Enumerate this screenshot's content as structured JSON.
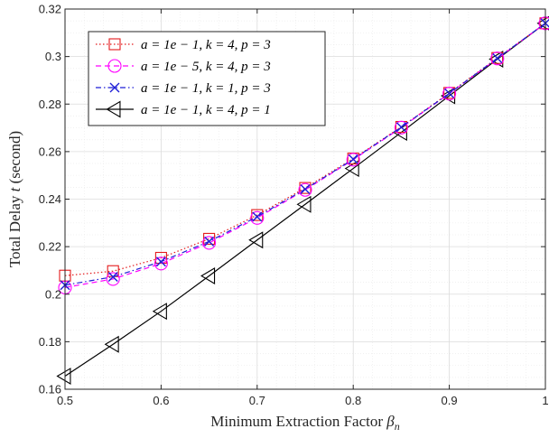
{
  "chart_data": {
    "type": "line",
    "xlabel": "Minimum Extraction Factor β_n",
    "ylabel": "Total Delay t (second)",
    "xlim": [
      0.5,
      1.0
    ],
    "ylim": [
      0.16,
      0.32
    ],
    "x_ticks": [
      "0.5",
      "0.6",
      "0.7",
      "0.8",
      "0.9",
      "1"
    ],
    "y_ticks": [
      "0.16",
      "0.18",
      "0.2",
      "0.22",
      "0.24",
      "0.26",
      "0.28",
      "0.3",
      "0.32"
    ],
    "grid": true,
    "minor_grid": true,
    "legend_position": "top-left",
    "x": [
      0.5,
      0.55,
      0.6,
      0.65,
      0.7,
      0.75,
      0.8,
      0.85,
      0.9,
      0.95,
      1.0
    ],
    "series": [
      {
        "name": "a = 1e − 1, k = 4, p = 3",
        "color": "#e41a1c",
        "line_style": "dotted",
        "marker": "square",
        "values": [
          0.2078,
          0.2097,
          0.2153,
          0.2233,
          0.2333,
          0.2447,
          0.2571,
          0.2704,
          0.2847,
          0.2994,
          0.314
        ]
      },
      {
        "name": "a = 1e − 5, k = 4, p = 3",
        "color": "#ff00ff",
        "line_style": "dashed",
        "marker": "circle",
        "values": [
          0.2028,
          0.2064,
          0.2129,
          0.2216,
          0.2321,
          0.2439,
          0.2566,
          0.2701,
          0.2844,
          0.2992,
          0.314
        ]
      },
      {
        "name": "a = 1e − 1, k = 1, p = 3",
        "color": "#1f1fd6",
        "line_style": "dashdot",
        "marker": "x",
        "values": [
          0.2038,
          0.2073,
          0.2137,
          0.2222,
          0.2326,
          0.2442,
          0.2568,
          0.2703,
          0.2845,
          0.2993,
          0.314
        ]
      },
      {
        "name": "a = 1e − 1, k = 4, p = 1",
        "color": "#000000",
        "line_style": "solid",
        "marker": "triangle-left",
        "values": [
          0.1655,
          0.1789,
          0.1928,
          0.2077,
          0.2228,
          0.2378,
          0.2529,
          0.2681,
          0.2835,
          0.2989,
          0.314
        ]
      }
    ]
  }
}
